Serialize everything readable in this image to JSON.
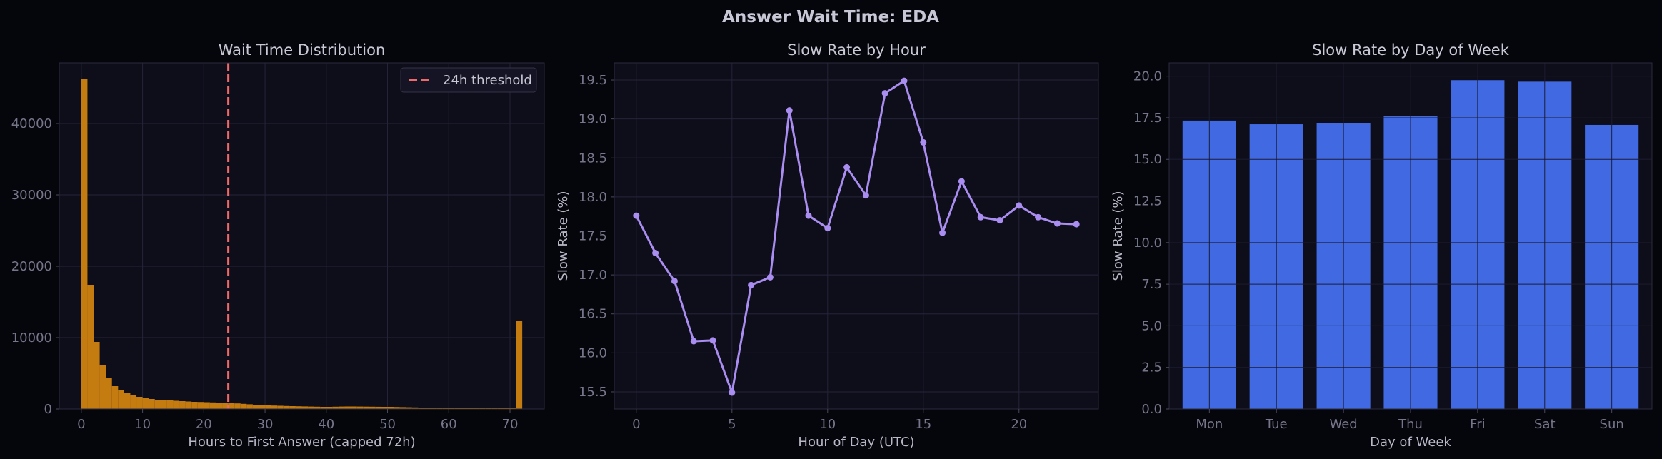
{
  "figure": {
    "title": "Answer Wait Time: EDA",
    "background": "#05050c",
    "panel_background": "#0e0e1a"
  },
  "chart_data": [
    {
      "type": "bar",
      "subtype": "histogram",
      "title": "Wait Time Distribution",
      "xlabel": "Hours to First Answer (capped 72h)",
      "ylabel": "",
      "xlim": [
        -3.6,
        75.6
      ],
      "ylim": [
        0,
        48500
      ],
      "xticks": [
        0,
        10,
        20,
        30,
        40,
        50,
        60,
        70
      ],
      "yticks": [
        0,
        10000,
        20000,
        30000,
        40000
      ],
      "bin_width": 1,
      "bins_start": [
        0,
        1,
        2,
        3,
        4,
        5,
        6,
        7,
        8,
        9,
        10,
        11,
        12,
        13,
        14,
        15,
        16,
        17,
        18,
        19,
        20,
        21,
        22,
        23,
        24,
        25,
        26,
        27,
        28,
        29,
        30,
        31,
        32,
        33,
        34,
        35,
        36,
        37,
        38,
        39,
        40,
        41,
        42,
        43,
        44,
        45,
        46,
        47,
        48,
        49,
        50,
        51,
        52,
        53,
        54,
        55,
        56,
        57,
        58,
        59,
        60,
        61,
        62,
        63,
        64,
        65,
        66,
        67,
        68,
        69,
        70,
        71
      ],
      "counts": [
        46200,
        17400,
        9400,
        6100,
        4300,
        3200,
        2600,
        2200,
        1900,
        1700,
        1550,
        1400,
        1300,
        1250,
        1200,
        1150,
        1100,
        1050,
        1000,
        980,
        950,
        920,
        880,
        850,
        820,
        780,
        720,
        660,
        600,
        560,
        520,
        480,
        450,
        420,
        400,
        380,
        360,
        340,
        320,
        300,
        300,
        320,
        340,
        350,
        350,
        340,
        330,
        320,
        310,
        300,
        300,
        280,
        260,
        240,
        220,
        200,
        190,
        180,
        170,
        160,
        150,
        140,
        140,
        130,
        130,
        130,
        130,
        130,
        130,
        130,
        150,
        12300
      ],
      "bar_color": "#c47b0f",
      "threshold": {
        "x": 24,
        "label": "24h threshold",
        "color": "#f06868"
      },
      "legend_position": "upper right",
      "grid": true
    },
    {
      "type": "line",
      "title": "Slow Rate by Hour",
      "xlabel": "Hour of Day (UTC)",
      "ylabel": "Slow Rate (%)",
      "xlim": [
        -1.15,
        24.15
      ],
      "ylim": [
        15.28,
        19.72
      ],
      "xticks": [
        0,
        5,
        10,
        15,
        20
      ],
      "yticks": [
        15.5,
        16.0,
        16.5,
        17.0,
        17.5,
        18.0,
        18.5,
        19.0,
        19.5
      ],
      "x": [
        0,
        1,
        2,
        3,
        4,
        5,
        6,
        7,
        8,
        9,
        10,
        11,
        12,
        13,
        14,
        15,
        16,
        17,
        18,
        19,
        20,
        21,
        22,
        23
      ],
      "y": [
        17.76,
        17.28,
        16.92,
        16.15,
        16.16,
        15.49,
        16.87,
        16.97,
        19.11,
        17.76,
        17.6,
        18.38,
        18.02,
        19.33,
        19.49,
        18.7,
        17.54,
        18.2,
        17.74,
        17.7,
        17.89,
        17.74,
        17.66,
        17.65
      ],
      "color": "#a98df0",
      "grid": true
    },
    {
      "type": "bar",
      "title": "Slow Rate by Day of Week",
      "xlabel": "Day of Week",
      "ylabel": "Slow Rate (%)",
      "ylim": [
        0,
        20.8
      ],
      "yticks": [
        0.0,
        2.5,
        5.0,
        7.5,
        10.0,
        12.5,
        15.0,
        17.5,
        20.0
      ],
      "categories": [
        "Mon",
        "Tue",
        "Wed",
        "Thu",
        "Fri",
        "Sat",
        "Sun"
      ],
      "values": [
        17.33,
        17.11,
        17.16,
        17.6,
        19.76,
        19.67,
        17.07
      ],
      "bar_color": "#4169e1",
      "grid": true
    }
  ]
}
